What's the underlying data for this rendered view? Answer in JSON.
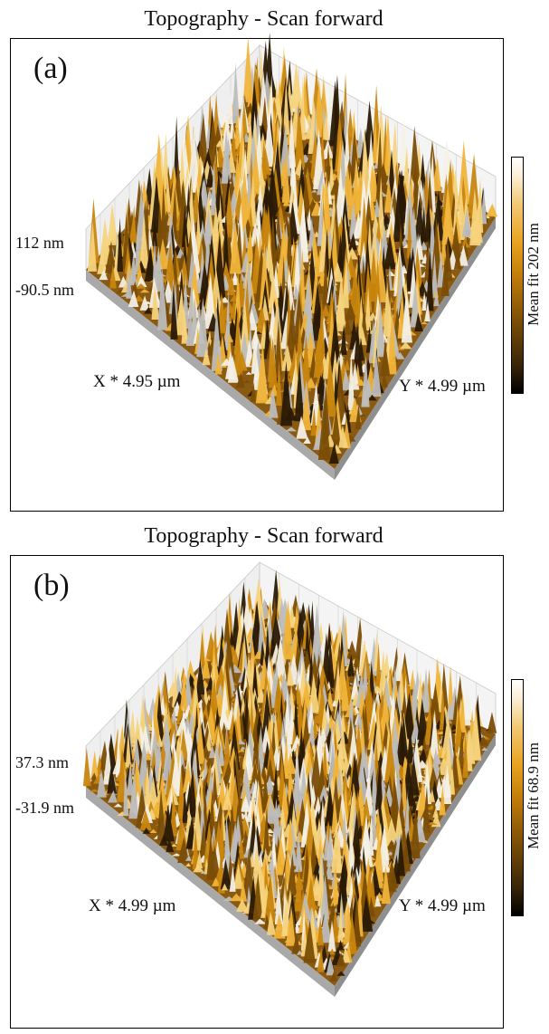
{
  "panels": [
    {
      "title": "Topography - Scan forward",
      "label": "(a)",
      "z_max": "112 nm",
      "z_min": "-90.5 nm",
      "x_axis": "X * 4.95 µm",
      "y_axis": "Y * 4.99 µm",
      "colorbar_label": "Mean fit 202 nm"
    },
    {
      "title": "Topography - Scan forward",
      "label": "(b)",
      "z_max": "37.3 nm",
      "z_min": "-31.9 nm",
      "x_axis": "X * 4.99 µm",
      "y_axis": "Y * 4.99 µm",
      "colorbar_label": "Mean fit 68.9 nm"
    }
  ],
  "colors": {
    "surface_dark": "#2a1a05",
    "surface_mid": "#c8860f",
    "surface_light": "#f0b43a",
    "surface_highlight": "#f3f0e6",
    "wall": "#a9a9a9",
    "grid": "#c9c9c9"
  },
  "chart_data": [
    {
      "type": "3d-surface",
      "title": "Topography - Scan forward",
      "panel_label": "(a)",
      "x_range_um": [
        0,
        4.95
      ],
      "y_range_um": [
        0,
        4.99
      ],
      "z_range_nm": [
        -90.5,
        112
      ],
      "colorbar": "Mean fit 202 nm",
      "colormap": "black-orange-white"
    },
    {
      "type": "3d-surface",
      "title": "Topography - Scan forward",
      "panel_label": "(b)",
      "x_range_um": [
        0,
        4.99
      ],
      "y_range_um": [
        0,
        4.99
      ],
      "z_range_nm": [
        -31.9,
        37.3
      ],
      "colorbar": "Mean fit 68.9 nm",
      "colormap": "black-orange-white"
    }
  ]
}
